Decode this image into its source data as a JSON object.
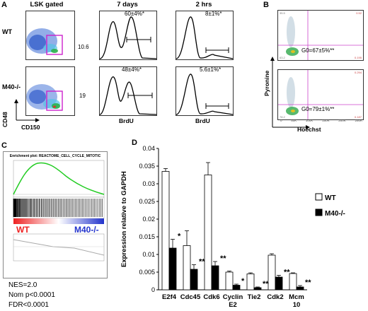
{
  "panel_labels": {
    "a": "A",
    "b": "B",
    "c": "C",
    "d": "D"
  },
  "panel_a": {
    "col_headers": [
      "LSK gated",
      "7 days",
      "2 hrs"
    ],
    "rows": [
      {
        "label": "WT",
        "gate_value": "10.6",
        "brdu_7d": "60±4%*",
        "brdu_2h": "8±1%*"
      },
      {
        "label": "M40-/-",
        "gate_value": "19",
        "brdu_7d": "48±4%*",
        "brdu_2h": "5.6±1%*"
      }
    ],
    "y_axis": "CD48",
    "x_axis": "CD150",
    "brdu_axis": "BrdU"
  },
  "panel_b": {
    "y_axis": "Pyronine",
    "x_axis": "Hoechst",
    "ticks": [
      "0",
      "50K",
      "100K",
      "150K",
      "200K",
      "250K"
    ],
    "plots": [
      {
        "g0": "G0=67±5%**",
        "q_tl": "35.5",
        "q_tr": "0.52",
        "q_bl": "63.2",
        "q_br": "0.195"
      },
      {
        "g0": "G0=79±1%**",
        "q_tl": "",
        "q_tr": "0.294",
        "q_bl": "78.2",
        "q_br": "0.187"
      }
    ]
  },
  "panel_c": {
    "title": "Enrichment plot: REACTOME_CELL_CYCLE_MITOTIC",
    "wt": "WT",
    "m40": "M40-/-",
    "nes": "NES=2.0",
    "nom_p": "Nom p<0.0001",
    "fdr": "FDR<0.0001",
    "colors": {
      "curve": "#22cc22",
      "wt": "#ee2222",
      "m40": "#2233cc"
    }
  },
  "chart_data": {
    "type": "bar",
    "categories": [
      "E2f4",
      "Cdc45",
      "Cdk6",
      "Cyclin E2",
      "Tie2",
      "Cdk2",
      "Mcm 10"
    ],
    "series": [
      {
        "name": "WT",
        "values": [
          0.0335,
          0.0125,
          0.0325,
          0.005,
          0.0045,
          0.0098,
          0.0046
        ],
        "errors": [
          0.0008,
          0.0042,
          0.0035,
          0.0003,
          0.0003,
          0.0004,
          0.0002
        ]
      },
      {
        "name": "M40-/-",
        "values": [
          0.0118,
          0.0058,
          0.0068,
          0.0013,
          0.0006,
          0.0036,
          0.0008
        ],
        "errors": [
          0.0025,
          0.0013,
          0.0012,
          0.0003,
          0.0002,
          0.0005,
          0.0004
        ]
      }
    ],
    "significance": [
      "*",
      "**",
      "**",
      "*",
      "**",
      "**",
      "**"
    ],
    "category_lines": [
      [
        "E2f4"
      ],
      [
        "Cdc45"
      ],
      [
        "Cdk6"
      ],
      [
        "Cyclin",
        "E2"
      ],
      [
        "Tie2"
      ],
      [
        "Cdk2"
      ],
      [
        "Mcm",
        "10"
      ]
    ],
    "yticks": [
      "0",
      "0.005",
      "0.01",
      "0.015",
      "0.02",
      "0.025",
      "0.03",
      "0.035",
      "0.04"
    ],
    "ylim": [
      0,
      0.04
    ],
    "ylabel": "Expression relative to GAPDH",
    "legend_position": "right"
  }
}
